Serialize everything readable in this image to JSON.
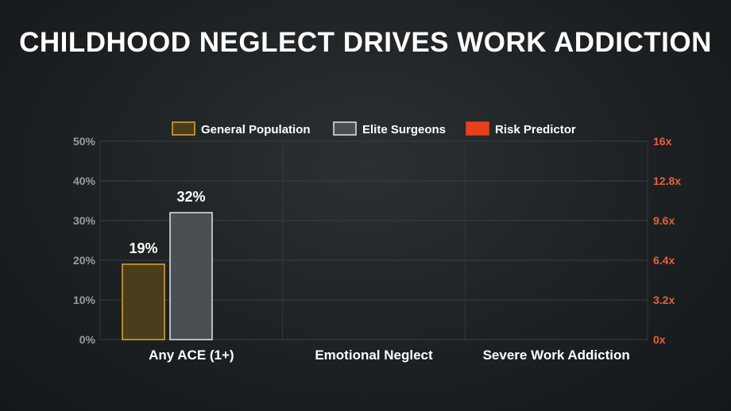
{
  "title": "CHILDHOOD NEGLECT DRIVES WORK ADDICTION",
  "chart_data": {
    "type": "bar",
    "categories": [
      "Any ACE (1+)",
      "Emotional Neglect",
      "Severe Work Addiction"
    ],
    "series": [
      {
        "name": "General Population",
        "axis": "left",
        "color": "#e0a530",
        "fill": "#4a3d1c",
        "values": [
          19,
          null,
          null
        ],
        "labels": [
          "19%",
          null,
          null
        ]
      },
      {
        "name": "Elite Surgeons",
        "axis": "left",
        "color": "#e6e6e6",
        "fill": "#4b4e52",
        "values": [
          32,
          null,
          null
        ],
        "labels": [
          "32%",
          null,
          null
        ]
      },
      {
        "name": "Risk Predictor",
        "axis": "right",
        "color": "#e8401a",
        "fill": "#e8401a",
        "values": [
          null,
          null,
          null
        ],
        "labels": [
          null,
          null,
          null
        ]
      }
    ],
    "y_left": {
      "min": 0,
      "max": 50,
      "ticks": [
        "0%",
        "10%",
        "20%",
        "30%",
        "40%",
        "50%"
      ]
    },
    "y_right": {
      "min": 0,
      "max": 16,
      "ticks": [
        "0x",
        "3.2x",
        "6.4x",
        "9.6x",
        "12.8x",
        "16x"
      ]
    },
    "grid": true,
    "legend_position": "top-center"
  }
}
